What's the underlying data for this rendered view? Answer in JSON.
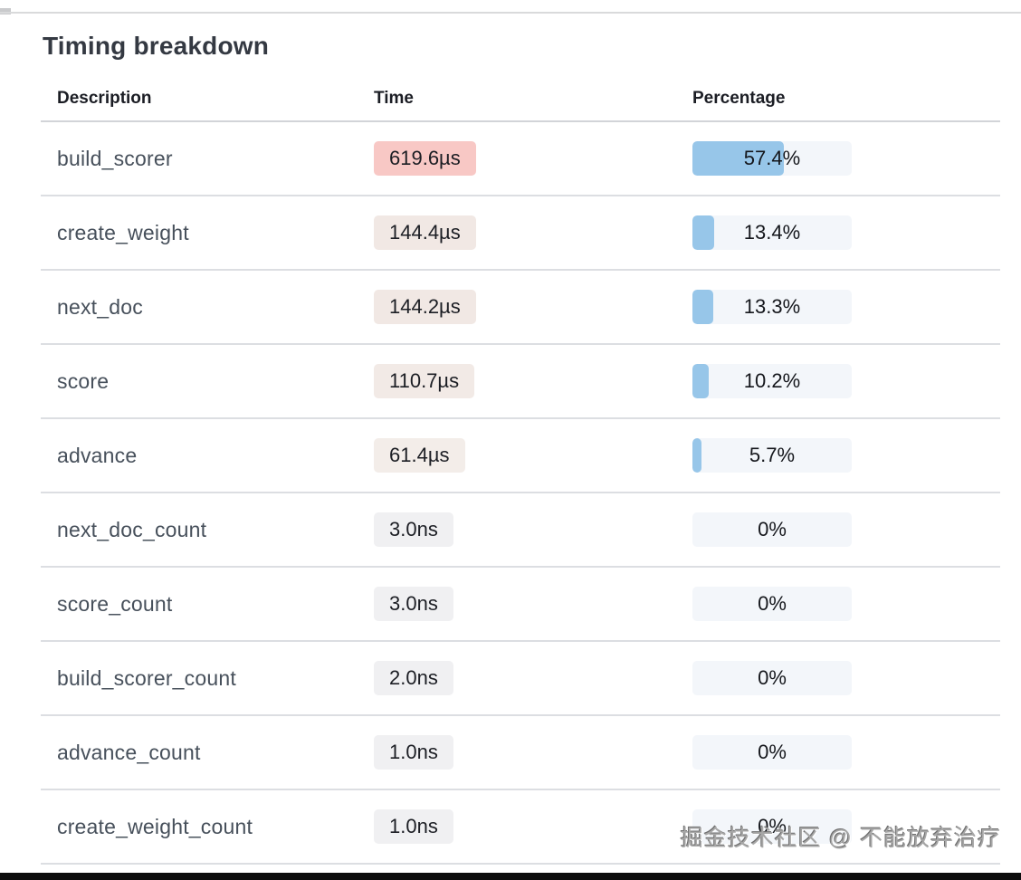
{
  "page": {
    "title": "Timing breakdown",
    "watermark": "掘金技术社区 @ 不能放弃治疗"
  },
  "colors": {
    "bar_fill": "#97c6e9",
    "bar_track": "#f3f6fa",
    "time_badge_hot": "#f8c8c5",
    "time_badge_neutral": "#f0f0f2",
    "row_divider": "#dcdee2",
    "header_divider": "#d2d4d8"
  },
  "table": {
    "columns": [
      "Description",
      "Time",
      "Percentage"
    ],
    "rows": [
      {
        "description": "build_scorer",
        "time": "619.6µs",
        "time_bg": "#f8c8c5",
        "percentage": "57.4%",
        "pct": 57.4
      },
      {
        "description": "create_weight",
        "time": "144.4µs",
        "time_bg": "#f1e8e4",
        "percentage": "13.4%",
        "pct": 13.4
      },
      {
        "description": "next_doc",
        "time": "144.2µs",
        "time_bg": "#f1e8e4",
        "percentage": "13.3%",
        "pct": 13.3
      },
      {
        "description": "score",
        "time": "110.7µs",
        "time_bg": "#f2eae6",
        "percentage": "10.2%",
        "pct": 10.2
      },
      {
        "description": "advance",
        "time": "61.4µs",
        "time_bg": "#f3ede9",
        "percentage": "5.7%",
        "pct": 5.7
      },
      {
        "description": "next_doc_count",
        "time": "3.0ns",
        "time_bg": "#f0f0f2",
        "percentage": "0%",
        "pct": 0
      },
      {
        "description": "score_count",
        "time": "3.0ns",
        "time_bg": "#f0f0f2",
        "percentage": "0%",
        "pct": 0
      },
      {
        "description": "build_scorer_count",
        "time": "2.0ns",
        "time_bg": "#f0f0f2",
        "percentage": "0%",
        "pct": 0
      },
      {
        "description": "advance_count",
        "time": "1.0ns",
        "time_bg": "#f0f0f2",
        "percentage": "0%",
        "pct": 0
      },
      {
        "description": "create_weight_count",
        "time": "1.0ns",
        "time_bg": "#f0f0f2",
        "percentage": "0%",
        "pct": 0
      }
    ]
  }
}
